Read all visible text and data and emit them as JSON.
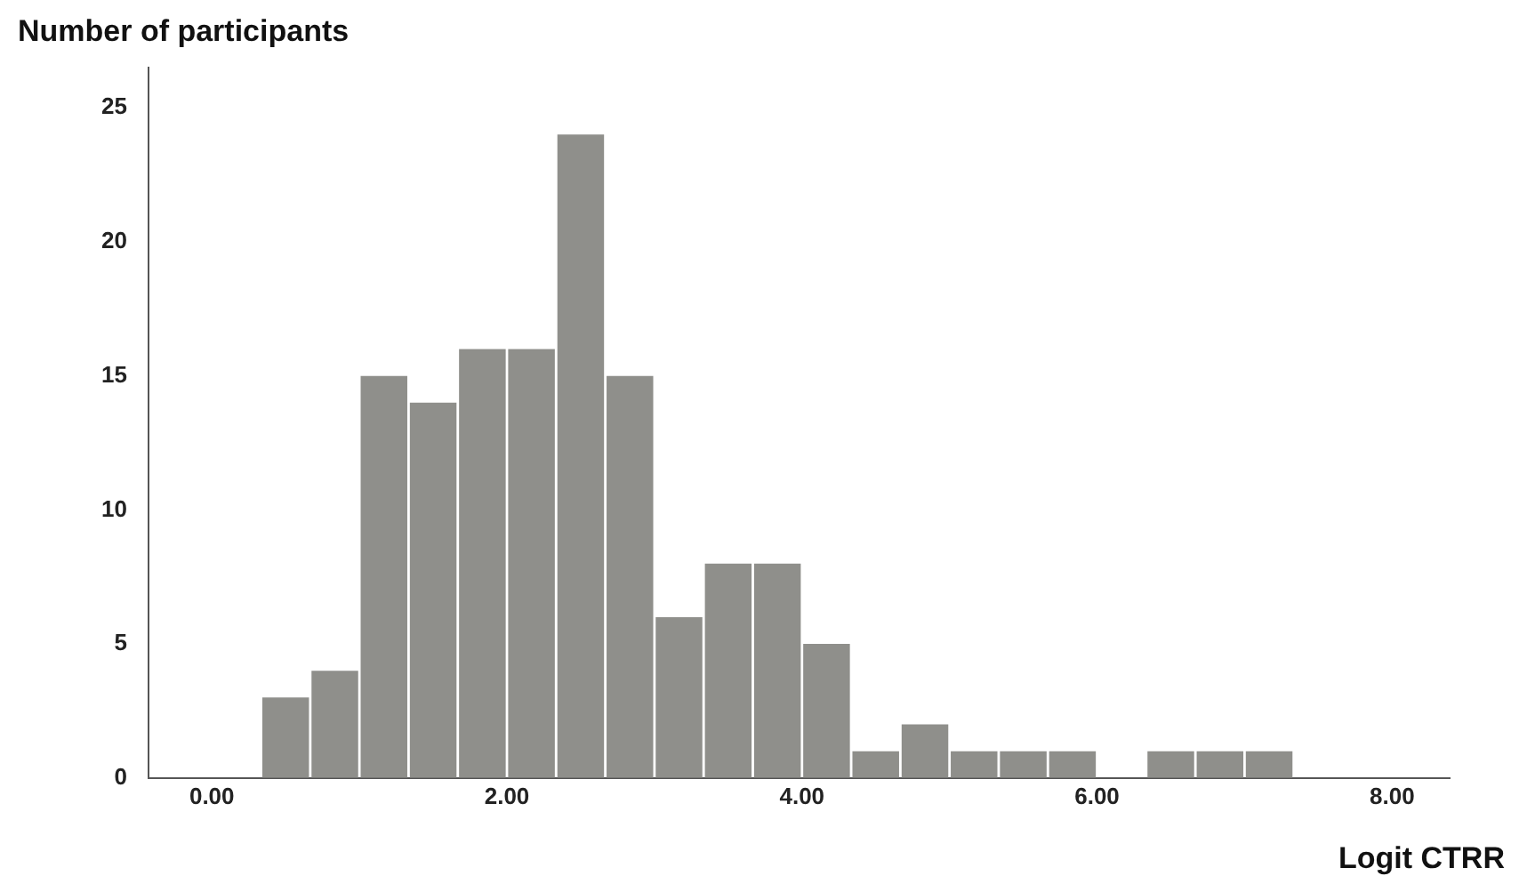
{
  "chart_data": {
    "type": "histogram",
    "ylabel": "Number of participants",
    "xlabel": "Logit CTRR",
    "bins": [
      0.333,
      0.667,
      1.0,
      1.333,
      1.667,
      2.0,
      2.333,
      2.667,
      3.0,
      3.333,
      3.667,
      4.0,
      4.333,
      4.667,
      5.0,
      5.333,
      5.667,
      6.0,
      6.333,
      6.667,
      7.0,
      7.333
    ],
    "values": [
      3,
      4,
      15,
      14,
      16,
      16,
      24,
      15,
      6,
      8,
      8,
      5,
      1,
      2,
      1,
      1,
      1,
      0,
      1,
      1,
      1
    ],
    "color": "#8f8f8b",
    "xlim": [
      -0.43,
      8.39
    ],
    "ylim": [
      0,
      26.5
    ],
    "xticks": [
      {
        "value": 0,
        "label": "0.00"
      },
      {
        "value": 2,
        "label": "2.00"
      },
      {
        "value": 4,
        "label": "4.00"
      },
      {
        "value": 6,
        "label": "6.00"
      },
      {
        "value": 8,
        "label": "8.00"
      }
    ],
    "yticks": [
      0,
      5,
      10,
      15,
      20,
      25
    ],
    "grid": false,
    "legend": false
  }
}
